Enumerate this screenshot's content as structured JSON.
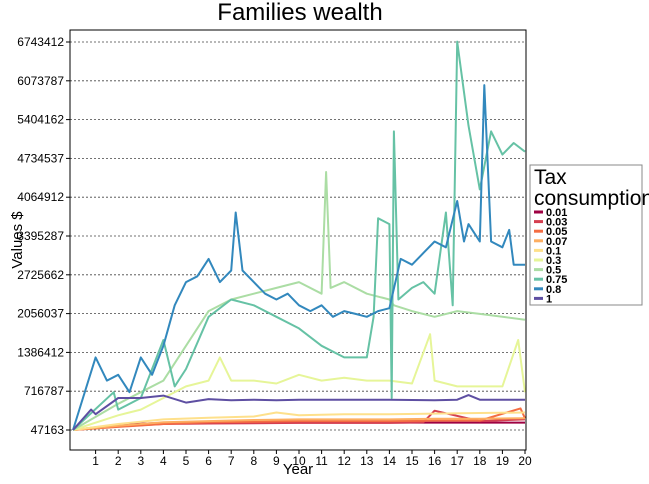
{
  "chart_data": {
    "type": "line",
    "title": "Families wealth",
    "xlabel": "Year",
    "ylabel": "Values $",
    "x_ticks": [
      1,
      2,
      3,
      4,
      5,
      6,
      7,
      8,
      9,
      10,
      11,
      12,
      13,
      14,
      15,
      16,
      17,
      18,
      19,
      20
    ],
    "y_ticks": [
      47163,
      716787,
      1386412,
      2056037,
      2725662,
      3395287,
      4064912,
      4734537,
      5404162,
      6073787,
      6743412
    ],
    "xlim": [
      0,
      20
    ],
    "ylim": [
      0,
      7000000
    ],
    "grid": "horizontal dashed at y ticks",
    "legend": {
      "title": "Tax consumption",
      "title_lines": [
        "Tax",
        "consumption"
      ],
      "placement": "right",
      "entries": [
        "0.01",
        "0.03",
        "0.05",
        "0.07",
        "0.1",
        "0.3",
        "0.5",
        "0.75",
        "0.8",
        "1"
      ]
    },
    "series": [
      {
        "name": "0.01",
        "color": "#9E0142",
        "x": [
          0,
          2,
          4,
          6,
          8,
          10,
          12,
          14,
          16,
          18,
          20
        ],
        "y": [
          47163,
          140000,
          170000,
          175000,
          175000,
          175000,
          175000,
          175000,
          175000,
          175000,
          175000
        ]
      },
      {
        "name": "0.03",
        "color": "#D53E4F",
        "x": [
          0,
          2,
          4,
          6,
          8,
          10,
          12,
          14,
          15.5,
          16,
          18,
          20
        ],
        "y": [
          47163,
          110000,
          150000,
          160000,
          165000,
          170000,
          170000,
          170000,
          180000,
          380000,
          200000,
          230000
        ]
      },
      {
        "name": "0.05",
        "color": "#F46D43",
        "x": [
          0,
          2,
          4,
          6,
          8,
          10,
          12,
          14,
          16,
          18,
          19.8,
          20
        ],
        "y": [
          47163,
          100000,
          150000,
          180000,
          190000,
          200000,
          200000,
          200000,
          210000,
          210000,
          420000,
          250000
        ]
      },
      {
        "name": "0.07",
        "color": "#FDAE61",
        "x": [
          0,
          2,
          4,
          6,
          8,
          10,
          12,
          14,
          16,
          18,
          20
        ],
        "y": [
          47163,
          120000,
          180000,
          200000,
          220000,
          230000,
          230000,
          230000,
          240000,
          240000,
          250000
        ]
      },
      {
        "name": "0.1",
        "color": "#FEE08B",
        "x": [
          0,
          2,
          4,
          6,
          8,
          9,
          10,
          12,
          14,
          16,
          18,
          20
        ],
        "y": [
          47163,
          150000,
          230000,
          260000,
          280000,
          350000,
          300000,
          320000,
          320000,
          330000,
          340000,
          350000
        ]
      },
      {
        "name": "0.3",
        "color": "#E6F598",
        "x": [
          0,
          2,
          3,
          4,
          5,
          6,
          6.5,
          7,
          8,
          9,
          10,
          11,
          12,
          13,
          14,
          15,
          15.8,
          16,
          17,
          18,
          19,
          19.7,
          20
        ],
        "y": [
          47163,
          300000,
          400000,
          600000,
          800000,
          900000,
          1300000,
          900000,
          900000,
          850000,
          1000000,
          900000,
          950000,
          900000,
          900000,
          850000,
          1700000,
          900000,
          800000,
          800000,
          800000,
          1600000,
          700000
        ]
      },
      {
        "name": "0.5",
        "color": "#ABDDA4",
        "x": [
          0,
          2,
          3,
          4,
          5,
          6,
          7,
          8,
          9,
          10,
          11,
          11.2,
          11.4,
          12,
          13,
          14,
          14.2,
          15,
          16,
          17,
          18,
          19,
          20
        ],
        "y": [
          47163,
          500000,
          700000,
          900000,
          1500000,
          2100000,
          2300000,
          2400000,
          2500000,
          2600000,
          2400000,
          4500000,
          2500000,
          2600000,
          2400000,
          2300000,
          2200000,
          2100000,
          2000000,
          2100000,
          2050000,
          2000000,
          1950000
        ]
      },
      {
        "name": "0.75",
        "color": "#66C2A5",
        "x": [
          0,
          1.8,
          2,
          3,
          4,
          4.5,
          5,
          6,
          7,
          8,
          9,
          10,
          11,
          12,
          13,
          13.3,
          13.5,
          14,
          14.1,
          14.2,
          14.4,
          15,
          15.5,
          16,
          16.5,
          16.8,
          17,
          17.5,
          18,
          18.5,
          19,
          19.5,
          20
        ],
        "y": [
          47163,
          700000,
          400000,
          600000,
          1600000,
          800000,
          1100000,
          2000000,
          2300000,
          2200000,
          2000000,
          1800000,
          1500000,
          1300000,
          1300000,
          2000000,
          3700000,
          3600000,
          600000,
          5200000,
          2300000,
          2500000,
          2600000,
          2400000,
          3800000,
          2200000,
          6750000,
          5300000,
          4200000,
          5200000,
          4800000,
          5000000,
          4850000
        ]
      },
      {
        "name": "0.8",
        "color": "#3288BD",
        "x": [
          0,
          1,
          1.5,
          2,
          2.5,
          3,
          3.5,
          4,
          4.5,
          5,
          5.5,
          6,
          6.5,
          7,
          7.2,
          7.5,
          8,
          8.5,
          9,
          9.5,
          10,
          10.5,
          11,
          11.5,
          12,
          12.5,
          13,
          13.5,
          14,
          14.5,
          15,
          15.5,
          16,
          16.5,
          17,
          17.3,
          17.5,
          18,
          18.2,
          18.5,
          19,
          19.3,
          19.5,
          20
        ],
        "y": [
          47163,
          1300000,
          900000,
          1000000,
          700000,
          1300000,
          1000000,
          1500000,
          2200000,
          2600000,
          2700000,
          3000000,
          2600000,
          2800000,
          3800000,
          2800000,
          2600000,
          2400000,
          2300000,
          2400000,
          2200000,
          2100000,
          2200000,
          2000000,
          2100000,
          2050000,
          2000000,
          2100000,
          2150000,
          3000000,
          2900000,
          3100000,
          3300000,
          3200000,
          4000000,
          3300000,
          3600000,
          3300000,
          6000000,
          3300000,
          3200000,
          3500000,
          2900000,
          2900000
        ]
      },
      {
        "name": "1",
        "color": "#5E4FA2",
        "x": [
          0,
          0.8,
          1,
          2,
          3,
          4,
          5,
          6,
          7,
          8,
          9,
          10,
          12,
          14,
          16,
          17,
          17.5,
          18,
          20
        ],
        "y": [
          47163,
          400000,
          320000,
          600000,
          600000,
          640000,
          520000,
          580000,
          560000,
          570000,
          560000,
          570000,
          570000,
          570000,
          560000,
          570000,
          650000,
          570000,
          570000
        ]
      }
    ]
  }
}
